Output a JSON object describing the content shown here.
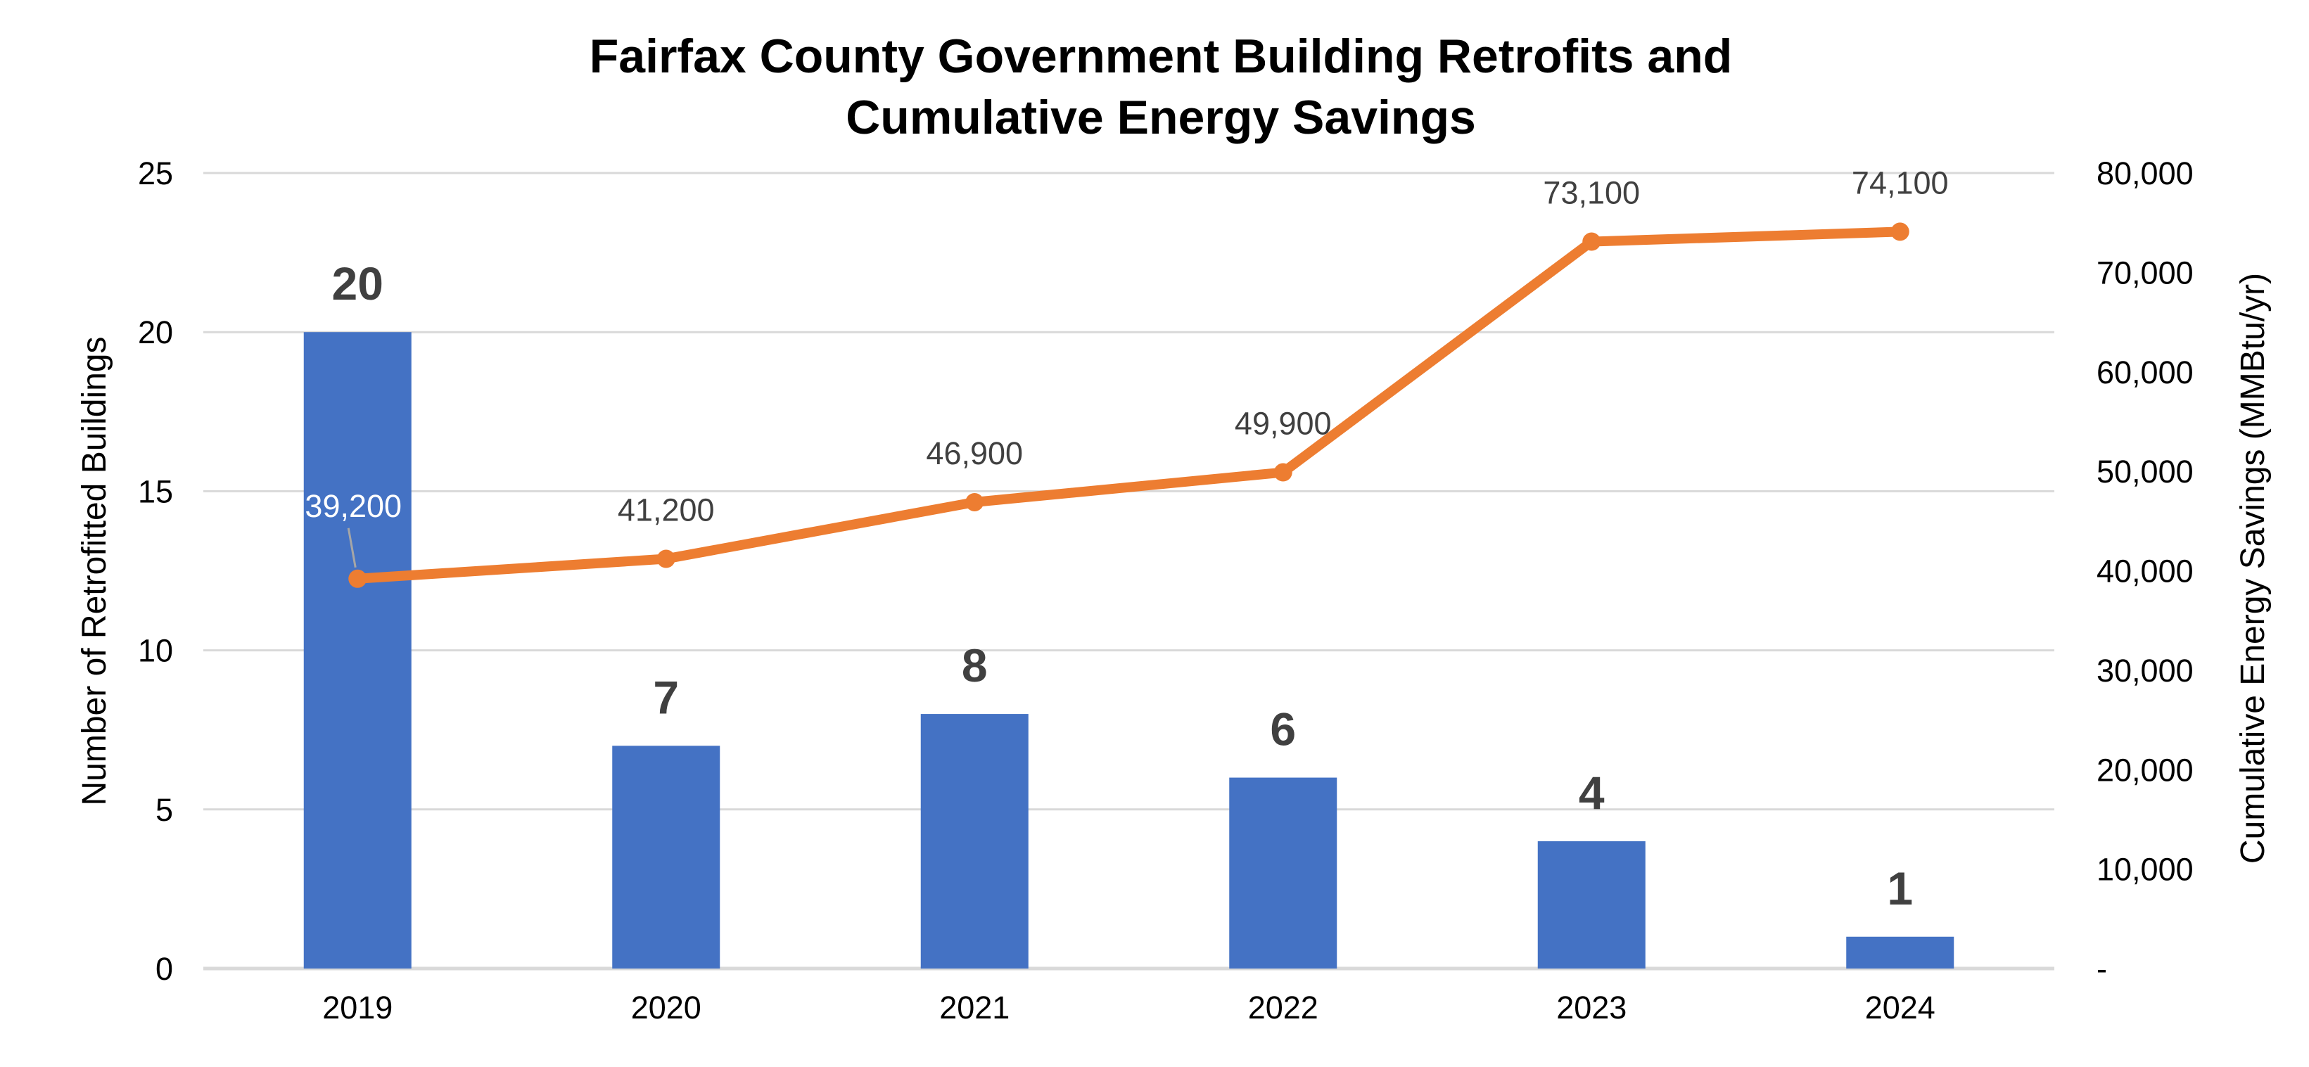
{
  "chart_data": {
    "type": "combo-bar-line",
    "title_line1": "Fairfax County Government Building Retrofits and",
    "title_line2": "Cumulative Energy Savings",
    "categories": [
      "2019",
      "2020",
      "2021",
      "2022",
      "2023",
      "2024"
    ],
    "series": [
      {
        "name": "Number of Retrofitted Buildings",
        "type": "bar",
        "axis": "primary",
        "values": [
          20,
          7,
          8,
          6,
          4,
          1
        ],
        "labels": [
          "20",
          "7",
          "8",
          "6",
          "4",
          "1"
        ]
      },
      {
        "name": "Cumulative Energy Savings",
        "type": "line",
        "axis": "secondary",
        "values": [
          39200,
          41200,
          46900,
          49900,
          73100,
          74100
        ],
        "labels": [
          "39,200",
          "41,200",
          "46,900",
          "49,900",
          "73,100",
          "74,100"
        ]
      }
    ],
    "primary_axis": {
      "title": "Number of Retrofitted Buildings",
      "min": 0,
      "max": 25,
      "tick_labels": [
        "0",
        "5",
        "10",
        "15",
        "20",
        "25"
      ]
    },
    "secondary_axis": {
      "title": "Cumulative Energy Savings (MMBtu/yr)",
      "min": 0,
      "max": 80000,
      "tick_labels": [
        "-",
        "10,000",
        "20,000",
        "30,000",
        "40,000",
        "50,000",
        "60,000",
        "70,000",
        "80,000"
      ]
    },
    "gridlines": true,
    "legend": "none"
  },
  "styles": {
    "background": "#FFFFFF",
    "bar_color": "#4472C4",
    "line_color": "#ED7D31",
    "data_label_color": "#404040",
    "white_label_color": "#FFFFFF",
    "tick_label_color": "#000000",
    "title_color": "#000000",
    "axis_title_color": "#000000",
    "gridline_color": "#D9D9D9",
    "axis_line_color": "#D9D9D9",
    "leader_line_color": "#A6A6A6"
  }
}
